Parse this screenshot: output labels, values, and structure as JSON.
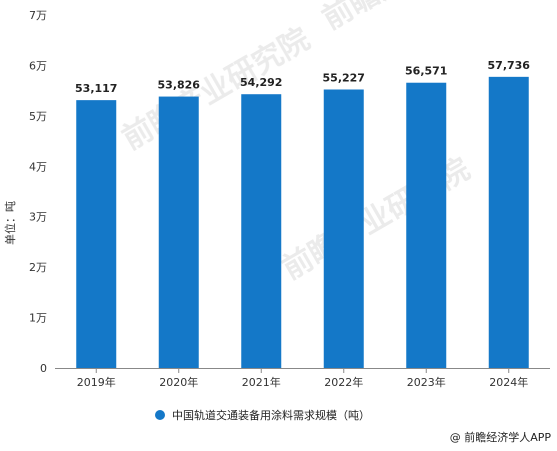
{
  "chart_data": {
    "type": "bar",
    "categories": [
      "2019年",
      "2020年",
      "2021年",
      "2022年",
      "2023年",
      "2024年"
    ],
    "values": [
      53117,
      53826,
      54292,
      55227,
      56571,
      57736
    ],
    "data_labels": [
      "53,117",
      "53,826",
      "54,292",
      "55,227",
      "56,571",
      "57,736"
    ],
    "ylim": [
      0,
      70000
    ],
    "yticks": [
      0,
      10000,
      20000,
      30000,
      40000,
      50000,
      60000,
      70000
    ],
    "ytick_labels": [
      "0",
      "1万",
      "2万",
      "3万",
      "4万",
      "5万",
      "6万",
      "7万"
    ],
    "ylabel": "单位：吨",
    "legend": {
      "label": "中国轨道交通装备用涂料需求规模（吨）",
      "position": "bottom"
    },
    "grid": false,
    "bar_color": "#1478c8"
  },
  "source": "@ 前瞻经济学人APP",
  "watermark": "前瞻产业研究院"
}
